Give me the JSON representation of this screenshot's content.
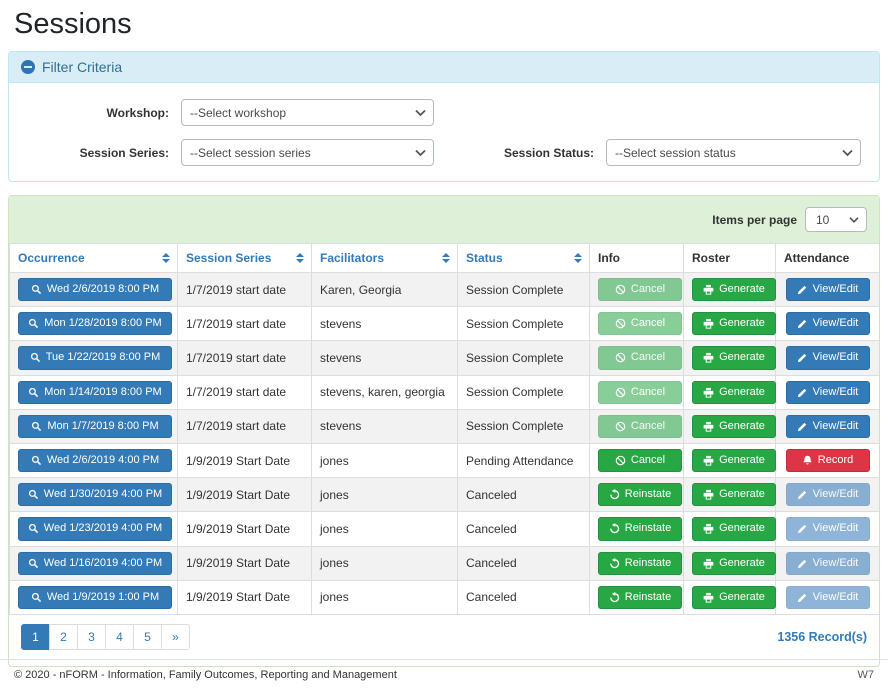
{
  "page_title": "Sessions",
  "filter": {
    "header": "Filter Criteria",
    "workshop_label": "Workshop:",
    "workshop_value": "--Select workshop",
    "session_series_label": "Session Series:",
    "session_series_value": "--Select session series",
    "session_status_label": "Session Status:",
    "session_status_value": "--Select session status"
  },
  "table": {
    "items_per_page_label": "Items per page",
    "items_per_page_value": "10",
    "columns": [
      {
        "label": "Occurrence",
        "sortable": true
      },
      {
        "label": "Session Series",
        "sortable": true
      },
      {
        "label": "Facilitators",
        "sortable": true
      },
      {
        "label": "Status",
        "sortable": true
      },
      {
        "label": "Info",
        "sortable": false
      },
      {
        "label": "Roster",
        "sortable": false
      },
      {
        "label": "Attendance",
        "sortable": false
      }
    ],
    "rows": [
      {
        "occurrence": "Wed 2/6/2019 8:00 PM",
        "session_series": "1/7/2019 start date",
        "facilitators": "Karen, Georgia",
        "status": "Session Complete",
        "info": {
          "label": "Cancel",
          "name": "cancel-button",
          "icon": "ban-icon",
          "variant": "success",
          "disabled": true
        },
        "roster": {
          "label": "Generate",
          "name": "generate-button",
          "icon": "printer-icon",
          "variant": "success",
          "disabled": false
        },
        "attendance": {
          "label": "View/Edit",
          "name": "view-edit-button",
          "icon": "pencil-icon",
          "variant": "primary",
          "disabled": false
        }
      },
      {
        "occurrence": "Mon 1/28/2019 8:00 PM",
        "session_series": "1/7/2019 start date",
        "facilitators": "stevens",
        "status": "Session Complete",
        "info": {
          "label": "Cancel",
          "name": "cancel-button",
          "icon": "ban-icon",
          "variant": "success",
          "disabled": true
        },
        "roster": {
          "label": "Generate",
          "name": "generate-button",
          "icon": "printer-icon",
          "variant": "success",
          "disabled": false
        },
        "attendance": {
          "label": "View/Edit",
          "name": "view-edit-button",
          "icon": "pencil-icon",
          "variant": "primary",
          "disabled": false
        }
      },
      {
        "occurrence": "Tue 1/22/2019 8:00 PM",
        "session_series": "1/7/2019 start date",
        "facilitators": "stevens",
        "status": "Session Complete",
        "info": {
          "label": "Cancel",
          "name": "cancel-button",
          "icon": "ban-icon",
          "variant": "success",
          "disabled": true
        },
        "roster": {
          "label": "Generate",
          "name": "generate-button",
          "icon": "printer-icon",
          "variant": "success",
          "disabled": false
        },
        "attendance": {
          "label": "View/Edit",
          "name": "view-edit-button",
          "icon": "pencil-icon",
          "variant": "primary",
          "disabled": false
        }
      },
      {
        "occurrence": "Mon 1/14/2019 8:00 PM",
        "session_series": "1/7/2019 start date",
        "facilitators": "stevens, karen, georgia",
        "status": "Session Complete",
        "info": {
          "label": "Cancel",
          "name": "cancel-button",
          "icon": "ban-icon",
          "variant": "success",
          "disabled": true
        },
        "roster": {
          "label": "Generate",
          "name": "generate-button",
          "icon": "printer-icon",
          "variant": "success",
          "disabled": false
        },
        "attendance": {
          "label": "View/Edit",
          "name": "view-edit-button",
          "icon": "pencil-icon",
          "variant": "primary",
          "disabled": false
        }
      },
      {
        "occurrence": "Mon 1/7/2019 8:00 PM",
        "session_series": "1/7/2019 start date",
        "facilitators": "stevens",
        "status": "Session Complete",
        "info": {
          "label": "Cancel",
          "name": "cancel-button",
          "icon": "ban-icon",
          "variant": "success",
          "disabled": true
        },
        "roster": {
          "label": "Generate",
          "name": "generate-button",
          "icon": "printer-icon",
          "variant": "success",
          "disabled": false
        },
        "attendance": {
          "label": "View/Edit",
          "name": "view-edit-button",
          "icon": "pencil-icon",
          "variant": "primary",
          "disabled": false
        }
      },
      {
        "occurrence": "Wed 2/6/2019 4:00 PM",
        "session_series": "1/9/2019 Start Date",
        "facilitators": "jones",
        "status": "Pending Attendance",
        "info": {
          "label": "Cancel",
          "name": "cancel-button",
          "icon": "ban-icon",
          "variant": "success",
          "disabled": false
        },
        "roster": {
          "label": "Generate",
          "name": "generate-button",
          "icon": "printer-icon",
          "variant": "success",
          "disabled": false
        },
        "attendance": {
          "label": "Record",
          "name": "record-button",
          "icon": "bell-icon",
          "variant": "danger",
          "disabled": false
        }
      },
      {
        "occurrence": "Wed 1/30/2019 4:00 PM",
        "session_series": "1/9/2019 Start Date",
        "facilitators": "jones",
        "status": "Canceled",
        "info": {
          "label": "Reinstate",
          "name": "reinstate-button",
          "icon": "undo-icon",
          "variant": "success",
          "disabled": false
        },
        "roster": {
          "label": "Generate",
          "name": "generate-button",
          "icon": "printer-icon",
          "variant": "success",
          "disabled": false
        },
        "attendance": {
          "label": "View/Edit",
          "name": "view-edit-button",
          "icon": "pencil-icon",
          "variant": "primary",
          "disabled": true
        }
      },
      {
        "occurrence": "Wed 1/23/2019 4:00 PM",
        "session_series": "1/9/2019 Start Date",
        "facilitators": "jones",
        "status": "Canceled",
        "info": {
          "label": "Reinstate",
          "name": "reinstate-button",
          "icon": "undo-icon",
          "variant": "success",
          "disabled": false
        },
        "roster": {
          "label": "Generate",
          "name": "generate-button",
          "icon": "printer-icon",
          "variant": "success",
          "disabled": false
        },
        "attendance": {
          "label": "View/Edit",
          "name": "view-edit-button",
          "icon": "pencil-icon",
          "variant": "primary",
          "disabled": true
        }
      },
      {
        "occurrence": "Wed 1/16/2019 4:00 PM",
        "session_series": "1/9/2019 Start Date",
        "facilitators": "jones",
        "status": "Canceled",
        "info": {
          "label": "Reinstate",
          "name": "reinstate-button",
          "icon": "undo-icon",
          "variant": "success",
          "disabled": false
        },
        "roster": {
          "label": "Generate",
          "name": "generate-button",
          "icon": "printer-icon",
          "variant": "success",
          "disabled": false
        },
        "attendance": {
          "label": "View/Edit",
          "name": "view-edit-button",
          "icon": "pencil-icon",
          "variant": "primary",
          "disabled": true
        }
      },
      {
        "occurrence": "Wed 1/9/2019 1:00 PM",
        "session_series": "1/9/2019 Start Date",
        "facilitators": "jones",
        "status": "Canceled",
        "info": {
          "label": "Reinstate",
          "name": "reinstate-button",
          "icon": "undo-icon",
          "variant": "success",
          "disabled": false
        },
        "roster": {
          "label": "Generate",
          "name": "generate-button",
          "icon": "printer-icon",
          "variant": "success",
          "disabled": false
        },
        "attendance": {
          "label": "View/Edit",
          "name": "view-edit-button",
          "icon": "pencil-icon",
          "variant": "primary",
          "disabled": true
        }
      }
    ],
    "records_text": "1356 Record(s)"
  },
  "pagination": {
    "pages": [
      "1",
      "2",
      "3",
      "4",
      "5",
      "»"
    ],
    "active_index": 0
  },
  "footer": {
    "copyright": "© 2020 - nFORM - Information, Family Outcomes, Reporting and Management",
    "version": "W7"
  },
  "colors": {
    "primary": "#337ab7",
    "success": "#28a745",
    "danger": "#dc3545",
    "filter_header_bg": "#d9edf7",
    "filter_border": "#bce8f1",
    "table_header_bg": "#dff0d8",
    "table_border": "#cde3bd",
    "stripe": "#f2f2f2"
  }
}
